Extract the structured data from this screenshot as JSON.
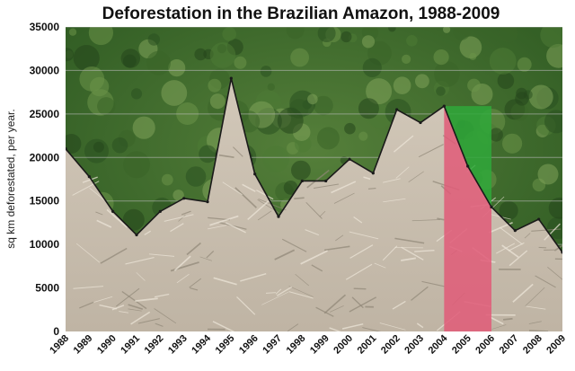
{
  "chart_data": {
    "type": "area",
    "title": "Deforestation in the Brazilian Amazon, 1988-2009",
    "xlabel": "",
    "ylabel": "sq km deforestated, per year.",
    "ylim": [
      0,
      35000
    ],
    "yticks": [
      0,
      5000,
      10000,
      15000,
      20000,
      25000,
      30000,
      35000
    ],
    "categories": [
      "1988",
      "1989",
      "1990",
      "1991",
      "1992",
      "1993",
      "1994",
      "1995",
      "1996",
      "1997",
      "1998",
      "1999",
      "2000",
      "2001",
      "2002",
      "2003",
      "2004",
      "2005",
      "2006",
      "2007",
      "2008",
      "2009"
    ],
    "series": [
      {
        "values": [
          21000,
          17800,
          13800,
          11100,
          13800,
          15300,
          14900,
          29100,
          18100,
          13200,
          17300,
          17300,
          19800,
          18200,
          25500,
          24000,
          25900,
          19000,
          14300,
          11600,
          12900,
          9100
        ]
      }
    ],
    "grid": true,
    "legend": "none",
    "highlight": {
      "x_start": "2004",
      "x_end": "2006",
      "level": 25900
    },
    "colors": {
      "forest_background": "#3f6e2c",
      "cleared_area": "#c9bfb0",
      "boundary_line": "#1a1a1a",
      "decline_area": "#e05a78",
      "gap_area": "#2fa83a",
      "gridline": "#bbbbbb"
    }
  }
}
